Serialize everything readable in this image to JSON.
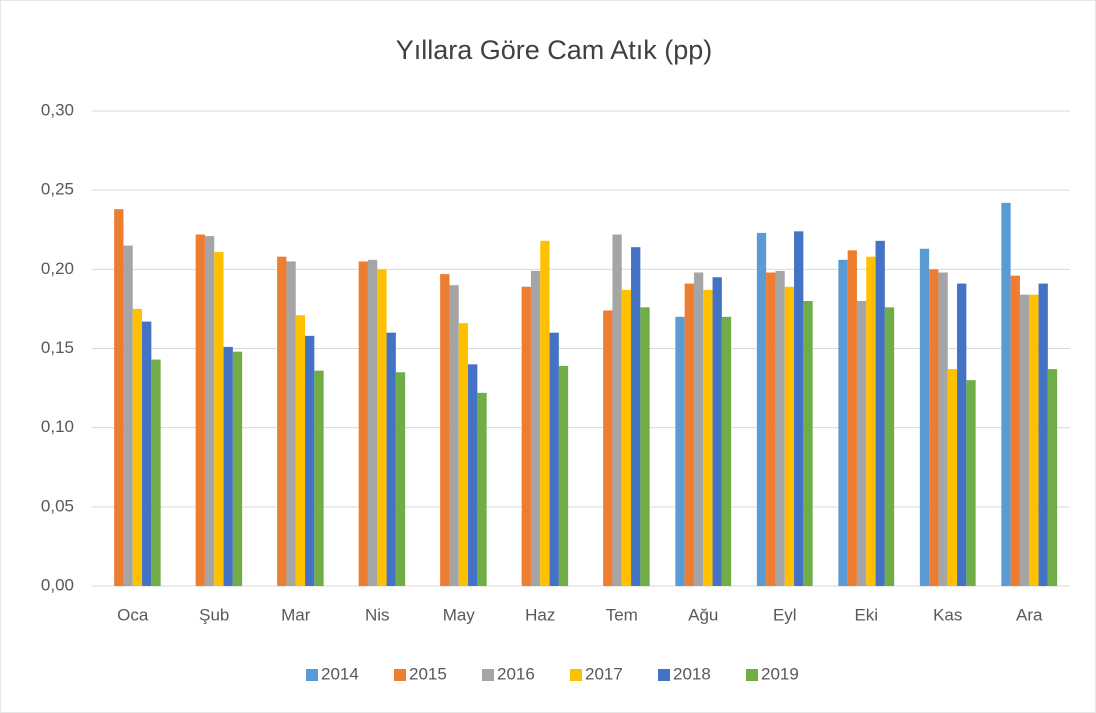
{
  "chart_data": {
    "type": "bar",
    "title": "Yıllara Göre Cam Atık (pp)",
    "categories": [
      "Oca",
      "Şub",
      "Mar",
      "Nis",
      "May",
      "Haz",
      "Tem",
      "Ağu",
      "Eyl",
      "Eki",
      "Kas",
      "Ara"
    ],
    "series": [
      {
        "name": "2014",
        "color": "#5b9bd5",
        "values": [
          null,
          null,
          null,
          null,
          null,
          null,
          null,
          0.17,
          0.223,
          0.206,
          0.213,
          0.242
        ]
      },
      {
        "name": "2015",
        "color": "#ed7d31",
        "values": [
          0.238,
          0.222,
          0.208,
          0.205,
          0.197,
          0.189,
          0.174,
          0.191,
          0.198,
          0.212,
          0.2,
          0.196
        ]
      },
      {
        "name": "2016",
        "color": "#a5a5a5",
        "values": [
          0.215,
          0.221,
          0.205,
          0.206,
          0.19,
          0.199,
          0.222,
          0.198,
          0.199,
          0.18,
          0.198,
          0.184
        ]
      },
      {
        "name": "2017",
        "color": "#ffc000",
        "values": [
          0.175,
          0.211,
          0.171,
          0.2,
          0.166,
          0.218,
          0.187,
          0.187,
          0.189,
          0.208,
          0.137,
          0.184
        ]
      },
      {
        "name": "2018",
        "color": "#4472c4",
        "values": [
          0.167,
          0.151,
          0.158,
          0.16,
          0.14,
          0.16,
          0.214,
          0.195,
          0.224,
          0.218,
          0.191,
          0.191
        ]
      },
      {
        "name": "2019",
        "color": "#70ad47",
        "values": [
          0.143,
          0.148,
          0.136,
          0.135,
          0.122,
          0.139,
          0.176,
          0.17,
          0.18,
          0.176,
          0.13,
          0.137
        ]
      }
    ],
    "ylim": [
      0,
      0.3
    ],
    "yticks": [
      {
        "value": 0,
        "label": "0,00"
      },
      {
        "value": 0.05,
        "label": "0,05"
      },
      {
        "value": 0.1,
        "label": "0,10"
      },
      {
        "value": 0.15,
        "label": "0,15"
      },
      {
        "value": 0.2,
        "label": "0,20"
      },
      {
        "value": 0.25,
        "label": "0,25"
      },
      {
        "value": 0.3,
        "label": "0,30"
      }
    ],
    "grid": true,
    "legend": "bottom"
  }
}
